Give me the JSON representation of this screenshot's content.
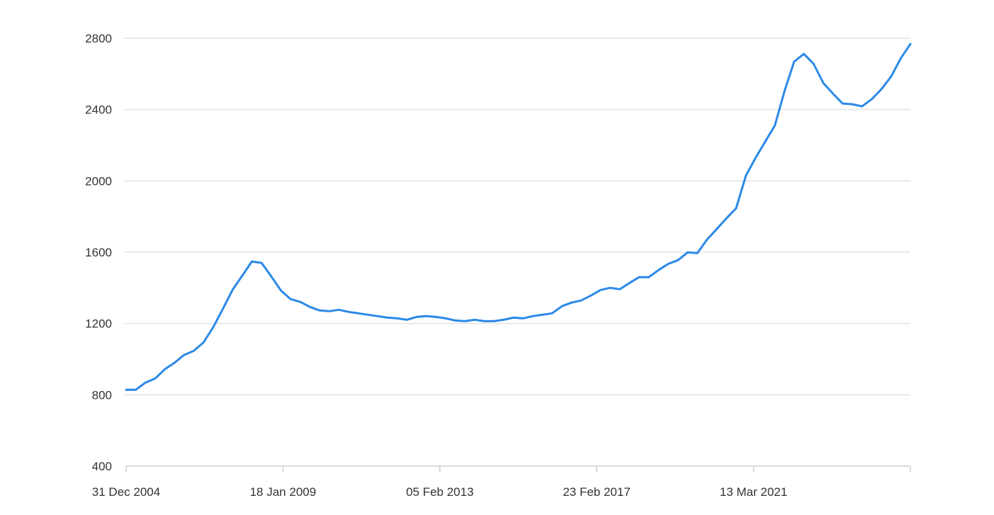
{
  "chart_data": {
    "type": "line",
    "title": "",
    "xlabel": "",
    "ylabel": "",
    "ylim": [
      400,
      2800
    ],
    "xlim": [
      "2004-12-31",
      "2025-03-31"
    ],
    "grid": true,
    "legend": "none",
    "line_color": "#2b89e8",
    "y_ticks": [
      400,
      800,
      1200,
      1600,
      2000,
      2400,
      2800
    ],
    "x_ticks": [
      {
        "date": "2004-12-31",
        "label": "31 Dec 2004"
      },
      {
        "date": "2009-01-18",
        "label": "18 Jan 2009"
      },
      {
        "date": "2013-02-05",
        "label": "05 Feb 2013"
      },
      {
        "date": "2017-02-23",
        "label": "23 Feb 2017"
      },
      {
        "date": "2021-03-13",
        "label": "13 Mar 2021"
      }
    ],
    "series": [
      {
        "start": "2004-12-31",
        "frequency": "quarterly",
        "values": [
          828,
          828,
          868,
          891,
          943,
          979,
          1023,
          1047,
          1094,
          1178,
          1281,
          1388,
          1468,
          1548,
          1540,
          1464,
          1384,
          1337,
          1321,
          1293,
          1273,
          1269,
          1277,
          1265,
          1257,
          1249,
          1241,
          1233,
          1229,
          1221,
          1237,
          1241,
          1237,
          1229,
          1217,
          1213,
          1221,
          1213,
          1213,
          1221,
          1233,
          1229,
          1241,
          1249,
          1257,
          1297,
          1317,
          1329,
          1357,
          1388,
          1400,
          1392,
          1428,
          1460,
          1460,
          1500,
          1535,
          1555,
          1599,
          1595,
          1671,
          1730,
          1790,
          1846,
          2029,
          2128,
          2219,
          2311,
          2506,
          2669,
          2712,
          2657,
          2549,
          2490,
          2434,
          2430,
          2418,
          2458,
          2514,
          2585,
          2688,
          2768
        ]
      }
    ]
  }
}
